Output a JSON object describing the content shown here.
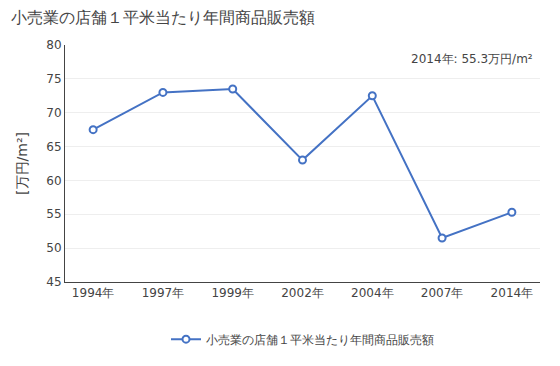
{
  "chart_data": {
    "type": "line",
    "title": "小売業の店舗１平米当たり年間商品販売額",
    "ylabel": "[万円/m²]",
    "annotation": "2014年: 55.3万円/m²",
    "categories": [
      "1994年",
      "1997年",
      "1999年",
      "2002年",
      "2004年",
      "2007年",
      "2014年"
    ],
    "series": [
      {
        "name": "小売業の店舗１平米当たり年間商品販売額",
        "color": "#4472C4",
        "values": [
          67.5,
          73.0,
          73.5,
          63.0,
          72.5,
          51.5,
          55.3
        ]
      }
    ],
    "ylim": [
      45,
      80
    ],
    "yticks": [
      45,
      50,
      55,
      60,
      65,
      70,
      75,
      80
    ],
    "grid": true,
    "legend": "bottom",
    "marker": "circle"
  }
}
